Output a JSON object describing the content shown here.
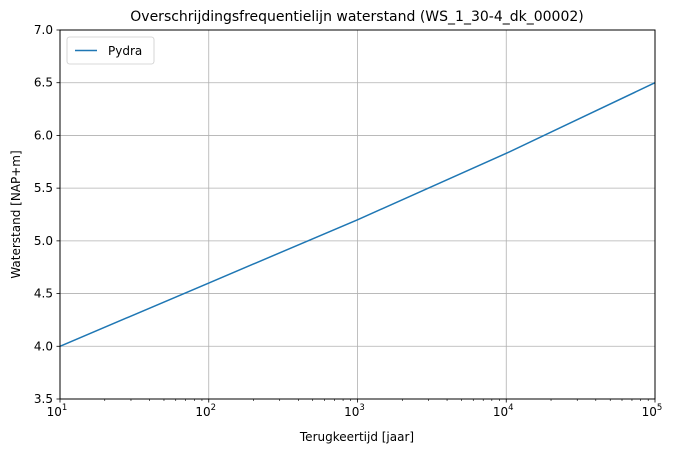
{
  "chart_data": {
    "type": "line",
    "title": "Overschrijdingsfrequentielijn waterstand (WS_1_30-4_dk_00002)",
    "xlabel": "Terugkeertijd [jaar]",
    "ylabel": "Waterstand [NAP+m]",
    "xscale": "log",
    "xlim": [
      10,
      100000
    ],
    "ylim": [
      3.5,
      7.0
    ],
    "x_ticks": [
      10,
      100,
      1000,
      10000,
      100000
    ],
    "y_ticks": [
      3.5,
      4.0,
      4.5,
      5.0,
      5.5,
      6.0,
      6.5,
      7.0
    ],
    "y_tick_labels": [
      "3.5",
      "4.0",
      "4.5",
      "5.0",
      "5.5",
      "6.0",
      "6.5",
      "7.0"
    ],
    "grid": true,
    "legend": "upper-left",
    "series": [
      {
        "name": "Pydra",
        "color": "#1f77b4",
        "x": [
          10,
          100,
          1000,
          10000,
          100000
        ],
        "y": [
          4.0,
          4.6,
          5.2,
          5.83,
          6.5
        ]
      }
    ]
  }
}
